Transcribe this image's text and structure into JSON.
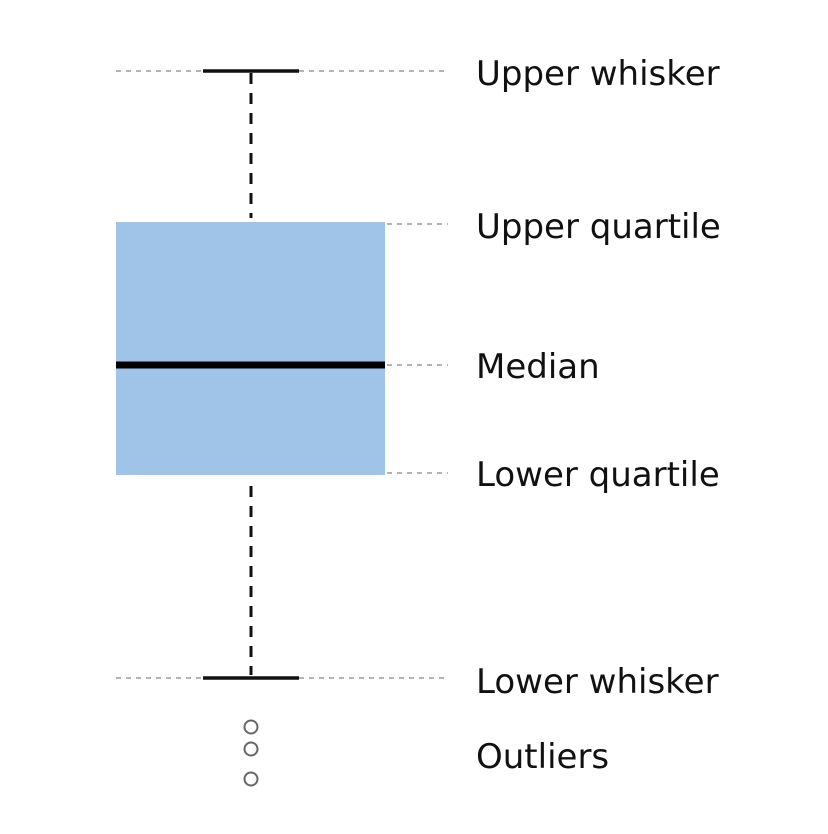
{
  "labels": {
    "upper_whisker": "Upper whisker",
    "upper_quartile": "Upper quartile",
    "median": "Median",
    "lower_quartile": "Lower quartile",
    "lower_whisker": "Lower whisker",
    "outliers": "Outliers"
  },
  "colors": {
    "box_fill": "#9fc4e8",
    "lines": "#111111",
    "guides": "#9a9a9a",
    "outlier_stroke": "#666666"
  }
}
